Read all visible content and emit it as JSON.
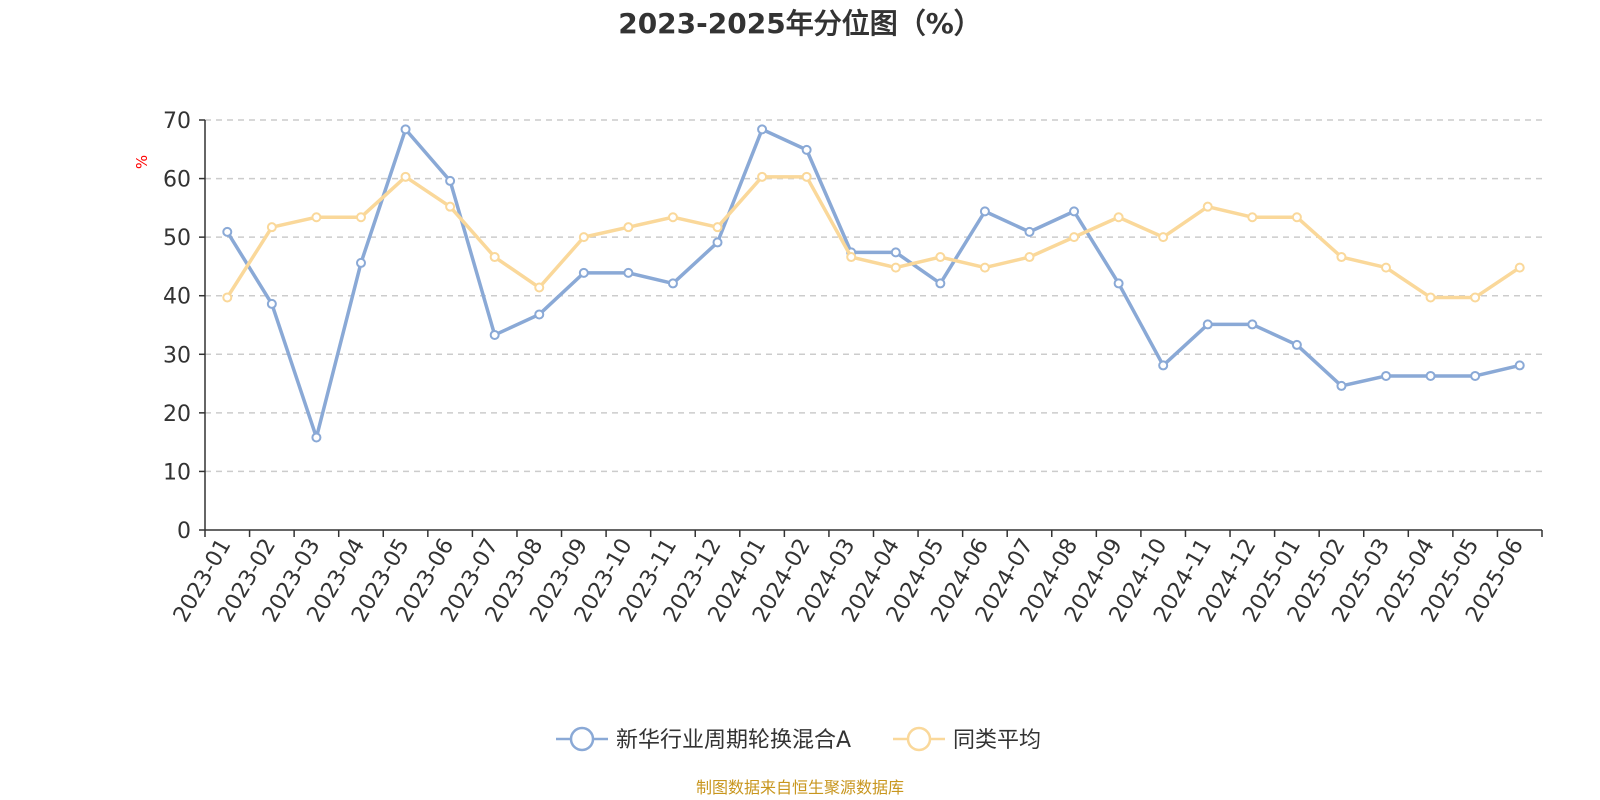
{
  "chart_data": {
    "type": "line",
    "title": "2023-2025年分位图（%）",
    "ylabel": "%",
    "xlabel": "",
    "ylim": [
      0,
      70
    ],
    "yticks": [
      0,
      10,
      20,
      30,
      40,
      50,
      60,
      70
    ],
    "grid": true,
    "legend_position": "bottom-center",
    "categories": [
      "2023-01",
      "2023-02",
      "2023-03",
      "2023-04",
      "2023-05",
      "2023-06",
      "2023-07",
      "2023-08",
      "2023-09",
      "2023-10",
      "2023-11",
      "2023-12",
      "2024-01",
      "2024-02",
      "2024-03",
      "2024-04",
      "2024-05",
      "2024-06",
      "2024-07",
      "2024-08",
      "2024-09",
      "2024-10",
      "2024-11",
      "2024-12",
      "2025-01",
      "2025-02",
      "2025-03",
      "2025-04",
      "2025-05",
      "2025-06"
    ],
    "series": [
      {
        "name": "新华行业周期轮换混合A",
        "color": "#8aa9d6",
        "values": [
          50.9,
          38.6,
          15.8,
          45.6,
          68.4,
          59.6,
          33.3,
          36.8,
          43.9,
          43.9,
          42.1,
          49.1,
          68.4,
          64.9,
          47.4,
          47.4,
          42.1,
          54.4,
          50.9,
          54.4,
          42.1,
          28.1,
          35.1,
          35.1,
          31.6,
          24.6,
          26.3,
          26.3,
          26.3,
          28.1
        ]
      },
      {
        "name": "同类平均",
        "color": "#fad89a",
        "values": [
          39.7,
          51.7,
          53.4,
          53.4,
          60.3,
          55.2,
          46.6,
          41.4,
          50.0,
          51.7,
          53.4,
          51.7,
          60.3,
          60.3,
          46.6,
          44.8,
          46.6,
          44.8,
          46.6,
          50.0,
          53.4,
          50.0,
          55.2,
          53.4,
          53.4,
          46.6,
          44.8,
          39.7,
          39.7,
          44.8
        ]
      }
    ],
    "source": "制图数据来自恒生聚源数据库"
  }
}
